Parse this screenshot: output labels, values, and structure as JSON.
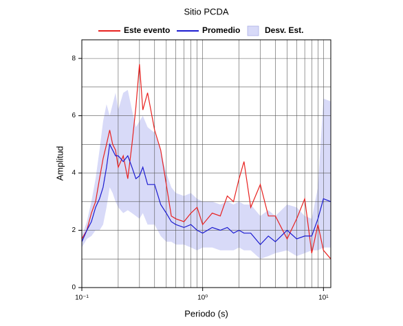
{
  "chart_data": {
    "type": "line",
    "title": "Sitio PCDA",
    "xlabel": "Periodo (s)",
    "ylabel": "Amplitud",
    "xscale": "log",
    "grid": true,
    "legend": "top",
    "xlim": [
      0.1,
      11.5
    ],
    "ylim": [
      0,
      8.65
    ],
    "xticks": [
      {
        "value": 0.1,
        "label": "10⁻¹"
      },
      {
        "value": 1,
        "label": "10⁰"
      },
      {
        "value": 10,
        "label": "10¹"
      }
    ],
    "xminor": [
      0.2,
      0.3,
      0.4,
      0.5,
      0.6,
      0.7,
      0.8,
      0.9,
      2,
      3,
      4,
      5,
      6,
      7,
      8,
      9
    ],
    "yticks": [
      0,
      2,
      4,
      6,
      8
    ],
    "yminor": [
      1,
      3,
      5,
      7
    ],
    "x": [
      0.1,
      0.11,
      0.12,
      0.13,
      0.14,
      0.15,
      0.16,
      0.17,
      0.18,
      0.19,
      0.2,
      0.22,
      0.24,
      0.26,
      0.28,
      0.3,
      0.32,
      0.35,
      0.4,
      0.45,
      0.5,
      0.55,
      0.6,
      0.7,
      0.8,
      0.9,
      1.0,
      1.2,
      1.4,
      1.6,
      1.8,
      2.0,
      2.2,
      2.5,
      3,
      3.5,
      4,
      5,
      6,
      7,
      8,
      9,
      10,
      11.5
    ],
    "series": [
      {
        "name": "Este evento",
        "color": "#e8201e",
        "values": [
          1.7,
          2.0,
          2.6,
          3.0,
          3.8,
          4.5,
          5.0,
          5.5,
          5.0,
          4.8,
          4.2,
          4.6,
          3.8,
          5.0,
          6.3,
          7.8,
          6.2,
          6.8,
          5.5,
          4.8,
          3.6,
          2.5,
          2.4,
          2.3,
          2.6,
          2.8,
          2.2,
          2.6,
          2.5,
          3.2,
          3.0,
          3.8,
          4.4,
          2.8,
          3.6,
          2.5,
          2.5,
          1.7,
          2.4,
          3.1,
          1.2,
          2.2,
          1.3,
          1.0
        ]
      },
      {
        "name": "Promedio",
        "color": "#1a1ad0",
        "values": [
          1.6,
          2.0,
          2.3,
          2.8,
          3.1,
          3.5,
          4.2,
          5.0,
          4.8,
          4.6,
          4.6,
          4.4,
          4.6,
          4.2,
          3.8,
          3.9,
          4.2,
          3.6,
          3.6,
          2.9,
          2.6,
          2.3,
          2.2,
          2.1,
          2.2,
          2.0,
          1.9,
          2.1,
          2.0,
          2.1,
          1.9,
          2.0,
          1.9,
          1.9,
          1.5,
          1.8,
          1.6,
          2.0,
          1.7,
          1.8,
          1.8,
          2.4,
          3.1,
          3.0
        ]
      },
      {
        "name": "Desv. Est.",
        "color": "#d8daf8",
        "upper": [
          1.8,
          2.3,
          3.0,
          3.8,
          4.8,
          5.8,
          6.4,
          6.0,
          6.4,
          6.8,
          6.2,
          6.8,
          6.9,
          6.2,
          5.6,
          5.8,
          6.0,
          5.6,
          5.4,
          4.8,
          4.0,
          3.5,
          3.3,
          3.2,
          3.3,
          3.1,
          3.0,
          3.0,
          2.9,
          3.0,
          2.9,
          3.0,
          2.9,
          2.9,
          2.5,
          2.7,
          2.5,
          2.9,
          2.8,
          2.5,
          2.4,
          3.5,
          6.6,
          6.5
        ],
        "lower": [
          1.4,
          1.7,
          1.8,
          2.0,
          2.0,
          2.2,
          2.8,
          3.5,
          3.3,
          3.0,
          2.8,
          2.6,
          2.7,
          2.6,
          2.5,
          2.4,
          2.6,
          2.2,
          2.2,
          1.8,
          1.6,
          1.6,
          1.5,
          1.5,
          1.4,
          1.3,
          1.4,
          1.4,
          1.3,
          1.3,
          1.3,
          1.4,
          1.3,
          1.3,
          1.0,
          1.1,
          1.2,
          1.3,
          1.1,
          1.2,
          1.3,
          1.3,
          1.4,
          1.4
        ]
      }
    ]
  }
}
